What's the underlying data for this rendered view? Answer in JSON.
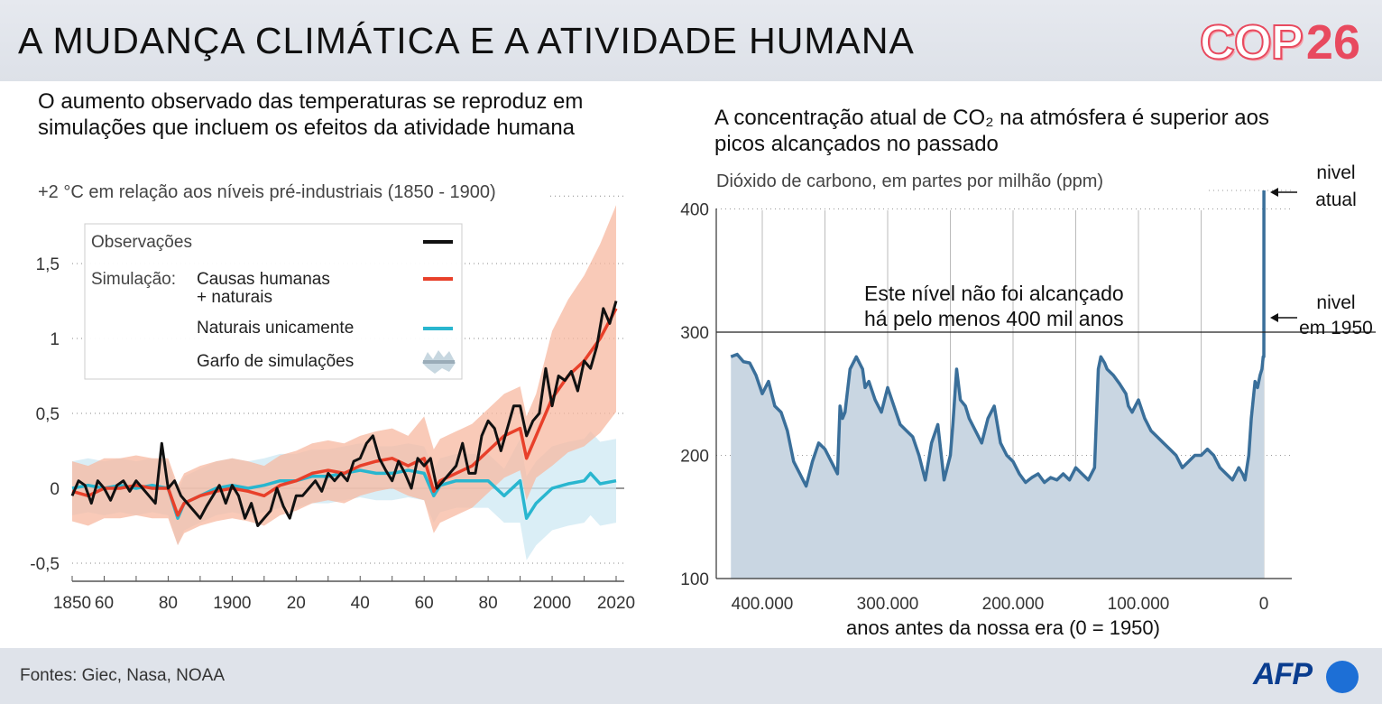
{
  "header": {
    "title": "A MUDANÇA CLIMÁTICA E A ATIVIDADE HUMANA",
    "logo_cop": "COP",
    "logo_number": "26"
  },
  "footer": {
    "sources": "Fontes: Giec, Nasa, NOAA",
    "logo": "AFP"
  },
  "colors": {
    "observations": "#111111",
    "human_natural": "#e8402a",
    "natural_only": "#29b6cf",
    "range_human": "#f7b8a0",
    "range_natural": "#cde8f3",
    "co2_line": "#3a6f9a",
    "co2_fill": "#c9d6e2",
    "cop_red": "#e84a5f",
    "afp_blue": "#0a3d8f"
  },
  "chart_data": [
    {
      "type": "line",
      "title": "O aumento observado das temperaturas se reproduz em simulações que incluem os efeitos da atividade humana",
      "ylabel": "+2 °C em relação aos níveis pré-industriais  (1850 - 1900)",
      "xlim": [
        1850,
        2020
      ],
      "ylim": [
        -0.6,
        2.0
      ],
      "x_ticks": [
        "1850",
        "60",
        "80",
        "1900",
        "20",
        "40",
        "60",
        "80",
        "2000",
        "2020"
      ],
      "x_tick_values": [
        1850,
        1860,
        1880,
        1900,
        1920,
        1940,
        1960,
        1980,
        2000,
        2020
      ],
      "y_ticks": [
        "-0,5",
        "0",
        "0,5",
        "1",
        "1,5"
      ],
      "y_tick_values": [
        -0.5,
        0,
        0.5,
        1,
        1.5
      ],
      "grid": "horizontal dotted",
      "legend": {
        "position": "top-left",
        "header_label": "Simulação:",
        "entries": [
          {
            "label": "Observações",
            "key": "observations"
          },
          {
            "label": "Causas humanas",
            "label2": "+ naturais",
            "key": "human_natural"
          },
          {
            "label": "Naturais unicamente",
            "key": "natural_only"
          },
          {
            "label": "Garfo de simulações",
            "key": "range"
          }
        ]
      },
      "series": [
        {
          "name": "Observações",
          "x": [
            1850,
            1852,
            1854,
            1856,
            1858,
            1860,
            1862,
            1864,
            1866,
            1868,
            1870,
            1872,
            1874,
            1876,
            1878,
            1880,
            1882,
            1884,
            1886,
            1888,
            1890,
            1892,
            1894,
            1896,
            1898,
            1900,
            1902,
            1904,
            1906,
            1908,
            1910,
            1912,
            1914,
            1916,
            1918,
            1920,
            1922,
            1924,
            1926,
            1928,
            1930,
            1932,
            1934,
            1936,
            1938,
            1940,
            1942,
            1944,
            1946,
            1948,
            1950,
            1952,
            1954,
            1956,
            1958,
            1960,
            1962,
            1964,
            1966,
            1968,
            1970,
            1972,
            1974,
            1976,
            1978,
            1980,
            1982,
            1984,
            1986,
            1988,
            1990,
            1992,
            1994,
            1996,
            1998,
            2000,
            2002,
            2004,
            2006,
            2008,
            2010,
            2012,
            2014,
            2016,
            2018,
            2020
          ],
          "y": [
            -0.05,
            0.05,
            0.02,
            -0.1,
            0.05,
            0.0,
            -0.08,
            0.02,
            0.05,
            -0.02,
            0.05,
            0.0,
            -0.05,
            -0.1,
            0.3,
            0.0,
            0.05,
            -0.05,
            -0.1,
            -0.15,
            -0.2,
            -0.12,
            -0.05,
            0.02,
            -0.1,
            0.02,
            -0.05,
            -0.2,
            -0.1,
            -0.25,
            -0.2,
            -0.15,
            0.0,
            -0.12,
            -0.2,
            -0.05,
            -0.05,
            0.0,
            0.05,
            -0.02,
            0.1,
            0.05,
            0.1,
            0.05,
            0.18,
            0.2,
            0.3,
            0.35,
            0.2,
            0.12,
            0.05,
            0.18,
            0.1,
            0.0,
            0.2,
            0.15,
            0.2,
            0.0,
            0.05,
            0.1,
            0.15,
            0.3,
            0.1,
            0.1,
            0.35,
            0.45,
            0.4,
            0.25,
            0.4,
            0.55,
            0.55,
            0.35,
            0.45,
            0.5,
            0.8,
            0.55,
            0.75,
            0.72,
            0.78,
            0.65,
            0.85,
            0.8,
            0.95,
            1.2,
            1.1,
            1.25
          ]
        },
        {
          "name": "Causas humanas + naturais",
          "x": [
            1850,
            1855,
            1860,
            1865,
            1870,
            1875,
            1880,
            1883,
            1885,
            1890,
            1895,
            1900,
            1905,
            1910,
            1915,
            1920,
            1925,
            1930,
            1935,
            1940,
            1945,
            1950,
            1955,
            1960,
            1963,
            1965,
            1970,
            1975,
            1980,
            1985,
            1990,
            1992,
            1995,
            2000,
            2005,
            2010,
            2015,
            2020
          ],
          "y": [
            -0.02,
            -0.05,
            0.0,
            0.0,
            0.02,
            0.0,
            0.0,
            -0.18,
            -0.1,
            -0.05,
            -0.02,
            0.0,
            -0.02,
            -0.05,
            0.02,
            0.05,
            0.1,
            0.12,
            0.1,
            0.15,
            0.18,
            0.2,
            0.15,
            0.2,
            -0.02,
            0.05,
            0.1,
            0.15,
            0.25,
            0.35,
            0.4,
            0.2,
            0.35,
            0.6,
            0.75,
            0.85,
            1.0,
            1.2
          ]
        },
        {
          "name": "Naturais unicamente",
          "x": [
            1850,
            1855,
            1860,
            1865,
            1870,
            1875,
            1880,
            1883,
            1885,
            1890,
            1895,
            1900,
            1905,
            1910,
            1915,
            1920,
            1925,
            1930,
            1935,
            1940,
            1945,
            1950,
            1955,
            1960,
            1963,
            1965,
            1970,
            1975,
            1980,
            1985,
            1990,
            1992,
            1995,
            2000,
            2005,
            2010,
            2012,
            2015,
            2020
          ],
          "y": [
            0.0,
            0.02,
            0.0,
            0.02,
            0.0,
            0.02,
            0.0,
            -0.2,
            -0.1,
            -0.05,
            0.0,
            0.02,
            0.0,
            0.02,
            0.05,
            0.05,
            0.08,
            0.08,
            0.1,
            0.12,
            0.1,
            0.1,
            0.12,
            0.1,
            -0.05,
            0.02,
            0.05,
            0.05,
            0.05,
            -0.05,
            0.05,
            -0.2,
            -0.1,
            0.0,
            0.03,
            0.05,
            0.1,
            0.03,
            0.05
          ]
        }
      ]
    },
    {
      "type": "area",
      "title": "A concentração atual de CO₂ na atmósfera é superior aos picos alcançados no passado",
      "ylabel": "Dióxido de carbono, em partes por milhão (ppm)",
      "xlabel": "anos antes da nossa era (0 = 1950)",
      "xlim": [
        425000,
        -25000
      ],
      "ylim": [
        100,
        420
      ],
      "x_ticks": [
        "400.000",
        "300.000",
        "200.000",
        "100.000",
        "0"
      ],
      "x_tick_values": [
        400000,
        300000,
        200000,
        100000,
        0
      ],
      "y_ticks": [
        "100",
        "200",
        "300",
        "400"
      ],
      "y_tick_values": [
        100,
        200,
        300,
        400
      ],
      "grid": "vertical every 50.000 years",
      "reference_line": 300,
      "annotations": [
        {
          "text": "Este nível não foi alcançado",
          "text2": "há pelo menos 400 mil anos"
        },
        {
          "text": "nivel",
          "text2": "atual",
          "value": 415
        },
        {
          "text": "nivel",
          "text2": "em 1950",
          "value": 310
        }
      ],
      "series": [
        {
          "name": "CO₂",
          "x": [
            425000,
            420000,
            415000,
            410000,
            405000,
            400000,
            395000,
            390000,
            385000,
            380000,
            375000,
            370000,
            365000,
            360000,
            355000,
            350000,
            345000,
            340000,
            338000,
            336000,
            334000,
            330000,
            325000,
            320000,
            318000,
            315000,
            310000,
            305000,
            300000,
            295000,
            290000,
            285000,
            280000,
            275000,
            270000,
            265000,
            260000,
            255000,
            250000,
            248000,
            245000,
            242000,
            238000,
            235000,
            230000,
            225000,
            220000,
            215000,
            210000,
            205000,
            200000,
            195000,
            190000,
            185000,
            180000,
            175000,
            170000,
            165000,
            160000,
            155000,
            150000,
            145000,
            140000,
            135000,
            132000,
            130000,
            127000,
            125000,
            120000,
            115000,
            110000,
            108000,
            105000,
            100000,
            95000,
            90000,
            85000,
            80000,
            75000,
            70000,
            65000,
            60000,
            55000,
            50000,
            45000,
            40000,
            35000,
            30000,
            25000,
            20000,
            17000,
            15000,
            12000,
            10000,
            7000,
            5000,
            3000,
            1500,
            1000,
            500,
            0,
            -20,
            -40,
            -60,
            -71
          ],
          "y": [
            280,
            282,
            276,
            275,
            265,
            250,
            260,
            240,
            235,
            220,
            195,
            185,
            175,
            195,
            210,
            205,
            195,
            185,
            240,
            230,
            235,
            270,
            280,
            270,
            255,
            260,
            245,
            235,
            255,
            240,
            225,
            220,
            215,
            200,
            180,
            210,
            225,
            180,
            200,
            225,
            270,
            245,
            240,
            230,
            220,
            210,
            230,
            240,
            210,
            200,
            195,
            185,
            178,
            182,
            185,
            178,
            182,
            180,
            185,
            180,
            190,
            185,
            180,
            190,
            270,
            280,
            275,
            270,
            265,
            258,
            250,
            240,
            235,
            245,
            230,
            220,
            215,
            210,
            205,
            200,
            190,
            195,
            200,
            200,
            205,
            200,
            190,
            185,
            180,
            190,
            185,
            180,
            200,
            230,
            260,
            255,
            265,
            270,
            275,
            280,
            280,
            285,
            300,
            380,
            415
          ]
        }
      ]
    }
  ]
}
